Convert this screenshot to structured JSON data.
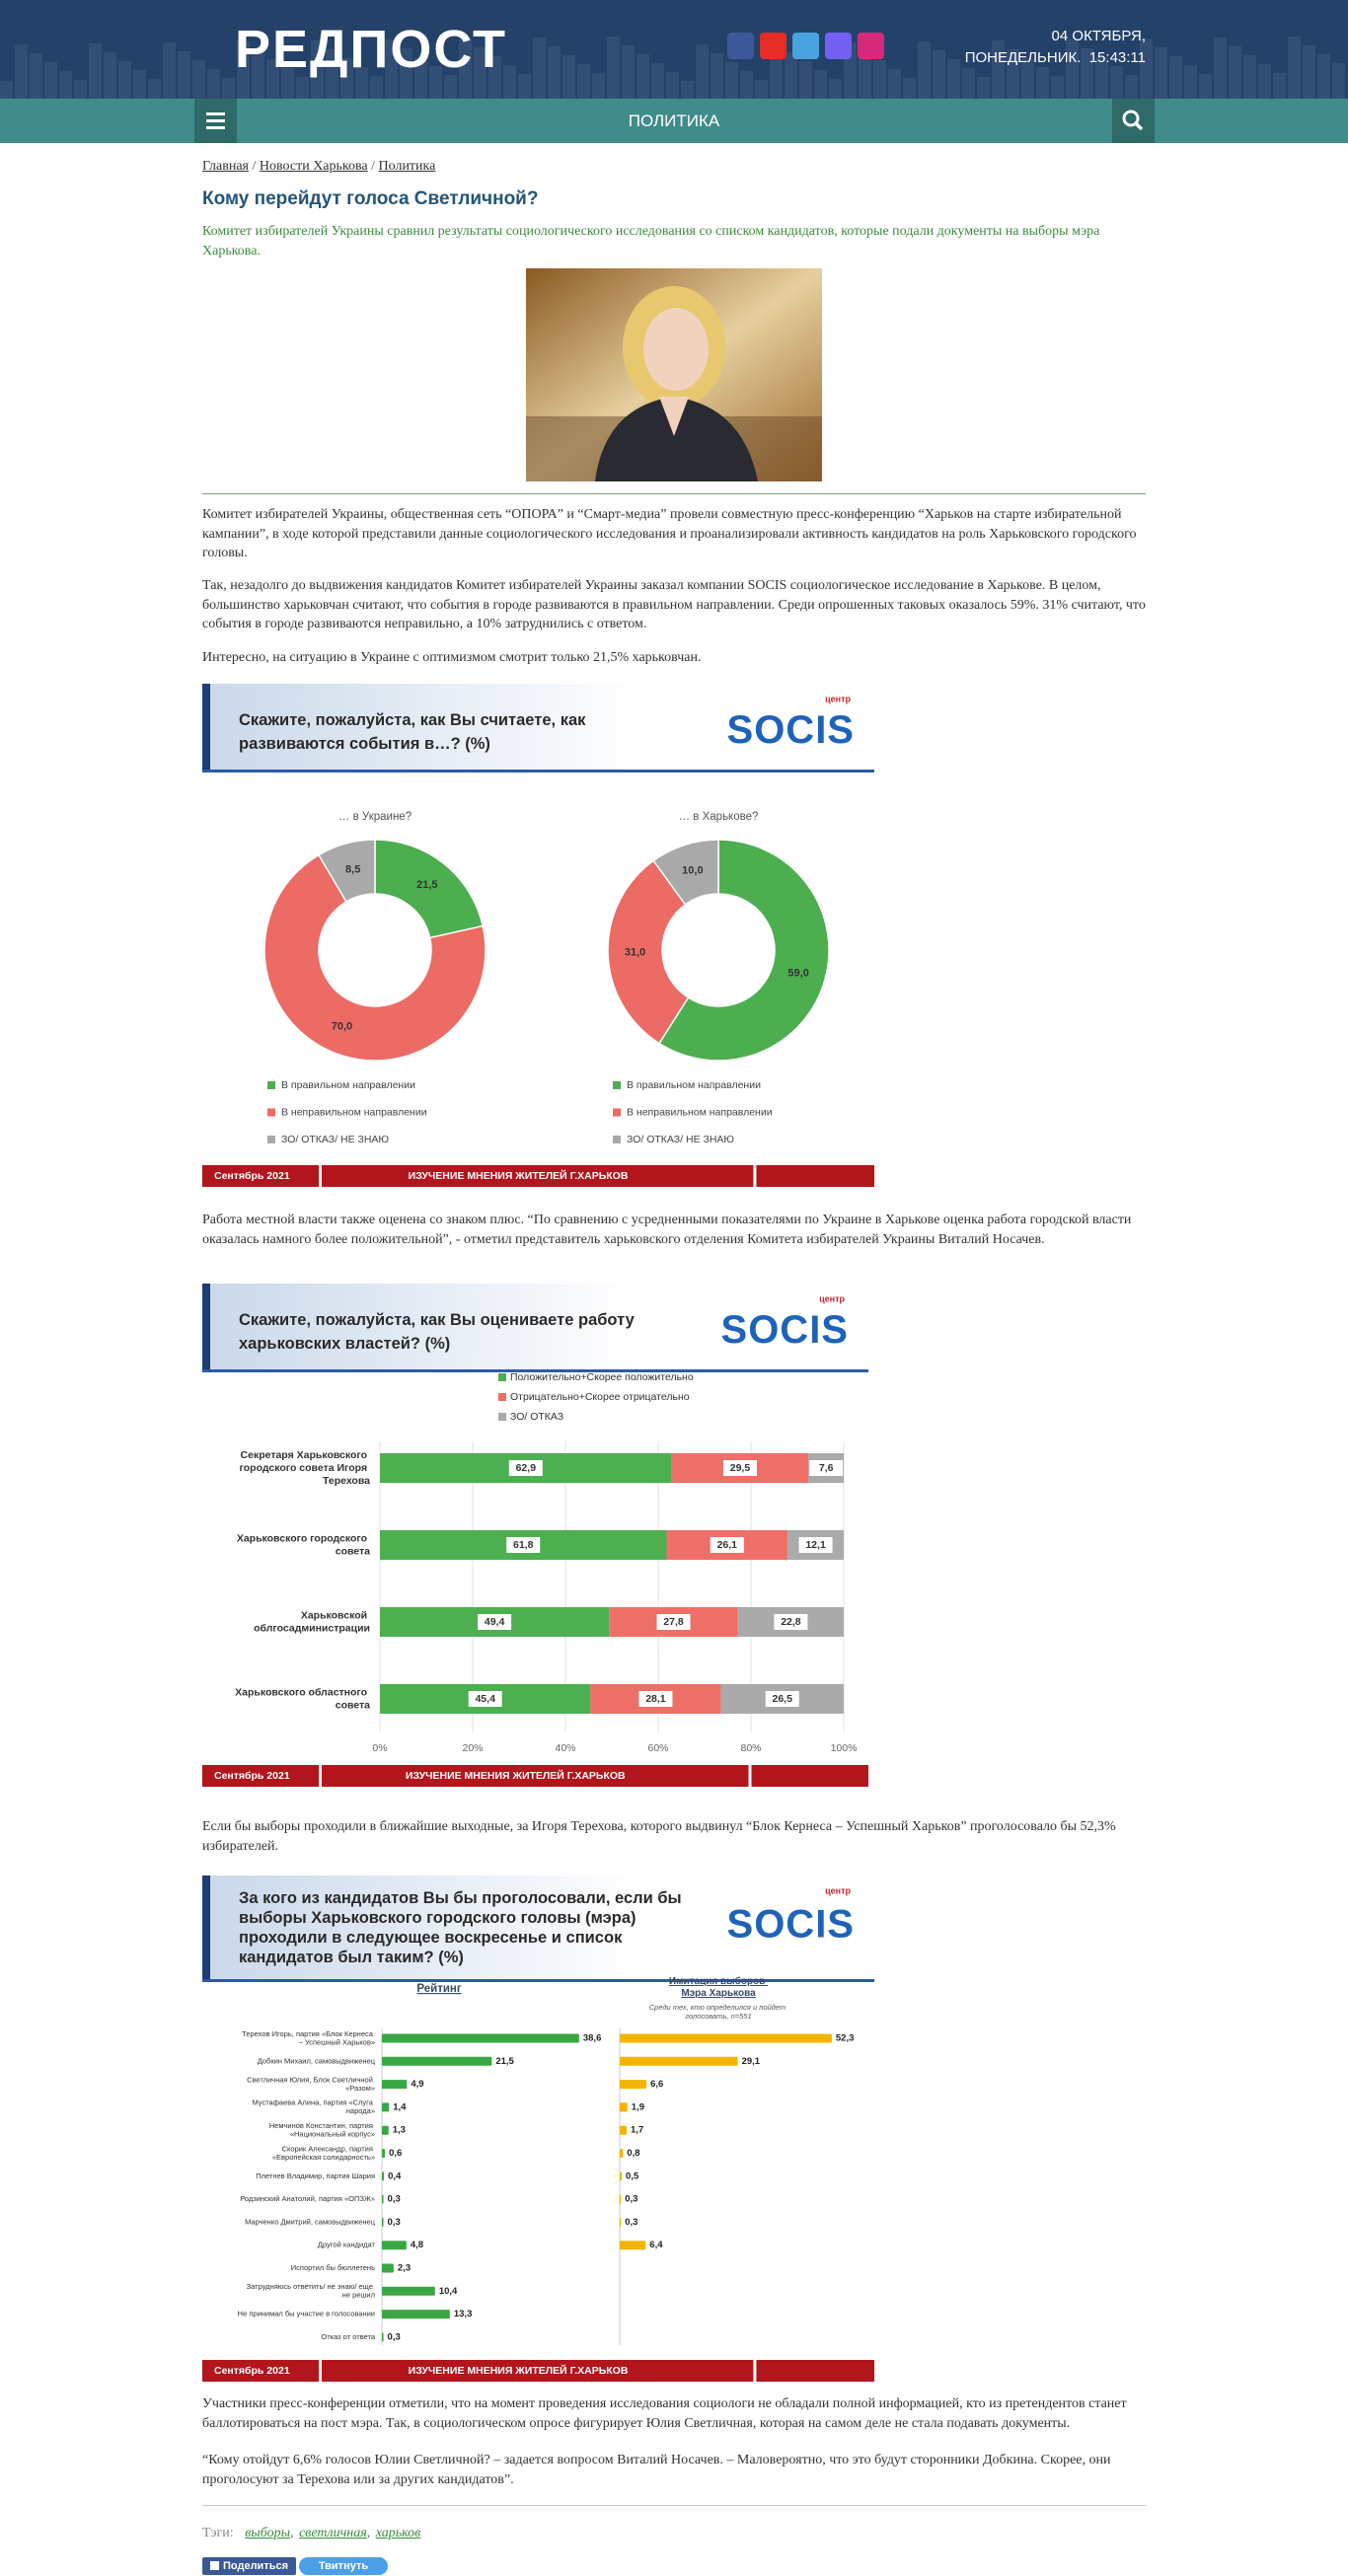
{
  "header": {
    "logo": "РЕДПОСТ",
    "date": "04 ОКТЯБРЯ,",
    "weekday": "ПОНЕДЕЛЬНИК.",
    "time": "15:43:11"
  },
  "nav": {
    "section": "ПОЛИТИКА"
  },
  "breadcrumbs": {
    "items": [
      "Главная",
      "Новости Харькова",
      "Политика"
    ],
    "separator": "/"
  },
  "article": {
    "title": "Кому перейдут голоса Светличной?",
    "lead": "Комитет избирателей Украины сравнил результаты социологического исследования со списком кандидатов, которые подали документы на выборы мэра Харькова.",
    "paragraphs": [
      "Комитет избирателей Украины, общественная сеть “ОПОРА” и “Смарт-медиа” провели совместную пресс-конференцию “Харьков на старте избирательной кампании”, в ходе которой представили данные социологического исследования и проанализировали активность кандидатов на роль Харьковского городского головы.",
      "Так, незадолго до выдвижения кандидатов Комитет избирателей Украины заказал компании SOCIS социологическое исследование в Харькове. В целом, большинство харьковчан считают, что события в городе развиваются в правильном направлении. Среди опрошенных таковых оказалось 59%. 31% считают, что события в городе развиваются неправильно, а 10% затруднились с ответом.",
      "Интересно, на ситуацию в Украине с оптимизмом смотрит только 21,5% харьковчан.",
      "Работа местной власти также оценена со знаком плюс. “По сравнению с усредненными показателями по Украине в Харькове оценка работа городской власти оказалась намного более положительной”, - отметил представитель харьковского отделения Комитета избирателей Украины Виталий Носачев.",
      "Если бы выборы проходили в ближайшие выходные, за Игоря Терехова, которого выдвинул “Блок Кернеса – Успешный Харьков” проголосовало бы 52,3% избирателей.",
      "Участники пресс-конференции отметили, что на момент проведения исследования социологи не обладали полной информацией, кто из претендентов станет баллотироваться на пост мэра. Так, в социологическом опросе фигурирует Юлия Светличная, которая на самом деле не стала подавать документы.",
      "“Кому отойдут 6,6% голосов Юлии Светличной? – задается вопросом Виталий Носачев. – Маловероятно, что это будут сторонники Добкина. Скорее, они проголосуют за Терехова или за других кандидатов”."
    ]
  },
  "charts": [
    {
      "type": "donut",
      "title": "Скажите, пожалуйста, как Вы считаете, как развиваются события в…? (%)",
      "brand": "SOCIS",
      "brand_note": "центр",
      "categories": [
        "В правильном направлении",
        "В неправильном направлении",
        "ЗО/ ОТКАЗ/ НЕ ЗНАЮ"
      ],
      "colors": [
        "#4cae4f",
        "#ec6b64",
        "#a9a9a9"
      ],
      "panels": [
        {
          "title": "… в Украине?",
          "values": [
            21.5,
            70.0,
            8.5
          ],
          "value_labels": [
            "21,5",
            "70,0",
            "8,5"
          ]
        },
        {
          "title": "… в Харькове?",
          "values": [
            59.0,
            31.0,
            10.0
          ],
          "value_labels": [
            "59,0",
            "31,0",
            "10,0"
          ]
        }
      ],
      "footer_date": "Сентябрь 2021",
      "footer_text": "ИЗУЧЕНИЕ МНЕНИЯ ЖИТЕЛЕЙ Г.ХАРЬКОВ"
    },
    {
      "type": "stacked-barh",
      "title": "Скажите, пожалуйста, как Вы оцениваете работу харьковских властей? (%)",
      "brand": "SOCIS",
      "brand_note": "центр",
      "categories": [
        "Секретаря Харьковского городского совета Игоря Терехова",
        "Харьковского городского совета",
        "Харьковской облгосадминистрации",
        "Харьковского областного совета"
      ],
      "series": [
        {
          "name": "Положительно+Скорее положительно",
          "color": "#4caf50",
          "values": [
            62.9,
            61.8,
            49.4,
            45.4
          ],
          "value_labels": [
            "62,9",
            "61,8",
            "49,4",
            "45,4"
          ]
        },
        {
          "name": "Отрицательно+Скорее отрицательно",
          "color": "#ee6f67",
          "values": [
            29.5,
            26.1,
            27.8,
            28.1
          ],
          "value_labels": [
            "29,5",
            "26,1",
            "27,8",
            "28,1"
          ]
        },
        {
          "name": "ЗО/ ОТКАЗ",
          "color": "#aaaaaa",
          "values": [
            7.6,
            12.1,
            22.8,
            26.5
          ],
          "value_labels": [
            "7,6",
            "12,1",
            "22,8",
            "26,5"
          ]
        }
      ],
      "xlim": [
        0,
        100
      ],
      "xticks": [
        {
          "value": 0,
          "label": "0%"
        },
        {
          "value": 20,
          "label": "20%"
        },
        {
          "value": 40,
          "label": "40%"
        },
        {
          "value": 60,
          "label": "60%"
        },
        {
          "value": 80,
          "label": "80%"
        },
        {
          "value": 100,
          "label": "100%"
        }
      ],
      "grid": true,
      "footer_date": "Сентябрь 2021",
      "footer_text": "ИЗУЧЕНИЕ МНЕНИЯ ЖИТЕЛЕЙ Г.ХАРЬКОВ"
    },
    {
      "type": "barh-panels",
      "title": "За кого из кандидатов Вы бы проголосовали, если бы выборы Харьковского городского головы (мэра) проходили в следующее воскресенье и список кандидатов был таким? (%)",
      "brand": "SOCIS",
      "brand_note": "центр",
      "categories": [
        "Терехов Игорь, партия «Блок Кернеса – Успешный Харьков»",
        "Добкин Михаил, самовыдвиженец",
        "Светличная Юлия, Блок Светличной «Разом»",
        "Мустафаева Алина, партия «Слуга народа»",
        "Немчинов Константин, партия «Национальный корпус»",
        "Скорик Александр, партия «Европейская солидарность»",
        "Плетнев Владимир, партия Шария",
        "Родзинский Анатолий, партия «ОПЗЖ»",
        "Марченко Дмитрий, самовыдвиженец",
        "Другой кандидат",
        "Испортил бы бюллетень",
        "Затрудняюсь ответить/ не знаю/ еще не решил",
        "Не принимал бы участие в голосовании",
        "Отказ от ответа"
      ],
      "panels": [
        {
          "title": "Рейтинг",
          "color": "#3aa745",
          "xlim": [
            0,
            45
          ],
          "values": [
            38.6,
            21.5,
            4.9,
            1.4,
            1.3,
            0.6,
            0.4,
            0.3,
            0.3,
            4.8,
            2.3,
            10.4,
            13.3,
            0.3
          ],
          "value_labels": [
            "38,6",
            "21,5",
            "4,9",
            "1,4",
            "1,3",
            "0,6",
            "0,4",
            "0,3",
            "0,3",
            "4,8",
            "2,3",
            "10,4",
            "13,3",
            "0,3"
          ]
        },
        {
          "title": "Имитация выборов Мэра Харькова",
          "subtitle": "Среди тех, кто определился и пойдет голосовать, n=551",
          "color": "#f4b400",
          "xlim": [
            0,
            55
          ],
          "values": [
            52.3,
            29.1,
            6.6,
            1.9,
            1.7,
            0.8,
            0.5,
            0.3,
            0.3,
            6.4,
            null,
            null,
            null,
            null
          ],
          "value_labels": [
            "52,3",
            "29,1",
            "6,6",
            "1,9",
            "1,7",
            "0,8",
            "0,5",
            "0,3",
            "0,3",
            "6,4",
            null,
            null,
            null,
            null
          ]
        }
      ],
      "footer_date": "Сентябрь 2021",
      "footer_text": "ИЗУЧЕНИЕ МНЕНИЯ ЖИТЕЛЕЙ Г.ХАРЬКОВ"
    }
  ],
  "tags": {
    "label": "Тэги:",
    "items": [
      "выборы",
      "светличная",
      "харьков"
    ],
    "separator": ","
  },
  "share": {
    "facebook": "Поделиться",
    "twitter": "Твитнуть"
  }
}
